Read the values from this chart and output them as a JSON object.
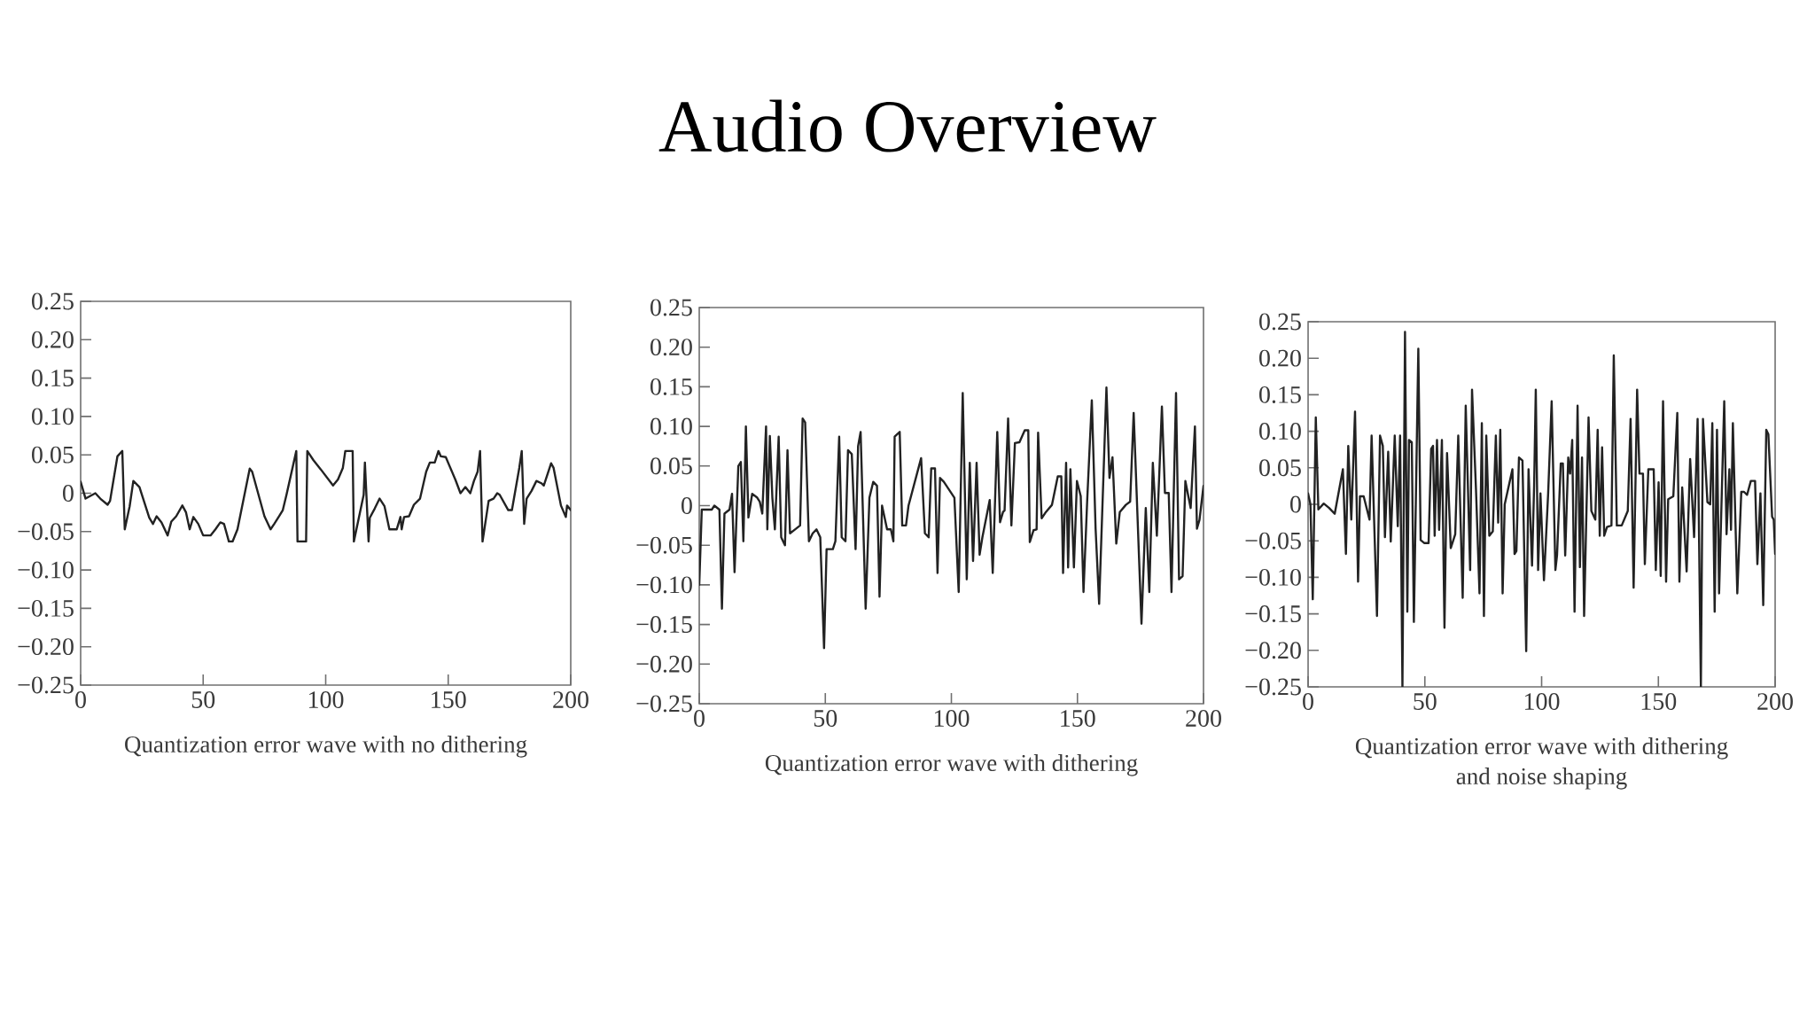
{
  "chart_data": [
    {
      "type": "line",
      "xlabel": "Quantization error wave with no dithering",
      "color": "#222222",
      "xlim": [
        0,
        200
      ],
      "ylim": [
        -0.25,
        0.25
      ],
      "xticks": [
        0,
        50,
        100,
        150,
        200
      ],
      "yticks": [
        {
          "value": -0.25,
          "label": "−0.25"
        },
        {
          "value": -0.2,
          "label": "−0.20"
        },
        {
          "value": -0.15,
          "label": "−0.15"
        },
        {
          "value": -0.1,
          "label": "−0.10"
        },
        {
          "value": -0.05,
          "label": "−0.05"
        },
        0,
        0.05,
        {
          "value": 0.1,
          "label": "0.10"
        },
        0.15,
        {
          "value": 0.2,
          "label": "0.20"
        },
        0.25
      ],
      "x": [
        0,
        2,
        6,
        8,
        11,
        12,
        15,
        17,
        18,
        20,
        21.5,
        24,
        26,
        28,
        29.5,
        31,
        33,
        35.5,
        37,
        39,
        41.5,
        43,
        44.5,
        46,
        48,
        50,
        53,
        55,
        57,
        58.5,
        60.5,
        62,
        64,
        69,
        70,
        75,
        77.5,
        79,
        81,
        82.5,
        84,
        88,
        88.5,
        92,
        92.5,
        95,
        98,
        103,
        105,
        107,
        108,
        111,
        111.5,
        115.5,
        116,
        117.5,
        118,
        120,
        122,
        124,
        126,
        129,
        130.5,
        131,
        132,
        134,
        136,
        138.5,
        141,
        142.5,
        144.5,
        146,
        147,
        149,
        153,
        155,
        157,
        159,
        160.5,
        162,
        163,
        164,
        166.5,
        168.5,
        170,
        171,
        174.5,
        176,
        179,
        180,
        181,
        182,
        184,
        186,
        188,
        189,
        192,
        193,
        196,
        198,
        198.5,
        200
      ],
      "values": [
        0.015,
        -0.007,
        0,
        -0.007,
        -0.015,
        -0.01,
        0.048,
        0.055,
        -0.047,
        -0.017,
        0.016,
        0.008,
        -0.012,
        -0.032,
        -0.04,
        -0.03,
        -0.038,
        -0.055,
        -0.037,
        -0.03,
        -0.016,
        -0.025,
        -0.047,
        -0.031,
        -0.04,
        -0.055,
        -0.055,
        -0.047,
        -0.038,
        -0.04,
        -0.063,
        -0.063,
        -0.047,
        0.032,
        0.028,
        -0.03,
        -0.047,
        -0.04,
        -0.03,
        -0.022,
        -0.002,
        0.055,
        -0.063,
        -0.063,
        0.055,
        0.043,
        0.031,
        0.01,
        0.018,
        0.033,
        0.055,
        0.055,
        -0.063,
        -0.002,
        0.04,
        -0.063,
        -0.032,
        -0.02,
        -0.007,
        -0.017,
        -0.047,
        -0.047,
        -0.031,
        -0.047,
        -0.031,
        -0.03,
        -0.015,
        -0.007,
        0.028,
        0.04,
        0.04,
        0.055,
        0.048,
        0.047,
        0.017,
        0,
        0.008,
        0,
        0.016,
        0.028,
        0.055,
        -0.063,
        -0.01,
        -0.007,
        0,
        -0.002,
        -0.022,
        -0.022,
        0.033,
        0.055,
        -0.04,
        -0.007,
        0.003,
        0.016,
        0.013,
        0.01,
        0.039,
        0.033,
        -0.016,
        -0.031,
        -0.016,
        -0.022
      ]
    },
    {
      "type": "line",
      "title": "Audio Overview",
      "xlabel": "Quantization error wave with dithering",
      "color": "#222222",
      "xlim": [
        0,
        200
      ],
      "ylim": [
        -0.25,
        0.25
      ],
      "xticks": [
        0,
        50,
        100,
        150,
        200
      ],
      "yticks": [
        {
          "value": -0.25,
          "label": "−0.25"
        },
        {
          "value": -0.2,
          "label": "−0.20"
        },
        {
          "value": -0.15,
          "label": "−0.15"
        },
        {
          "value": -0.1,
          "label": "−0.10"
        },
        {
          "value": -0.05,
          "label": "−0.05"
        },
        0,
        0.05,
        {
          "value": 0.1,
          "label": "0.10"
        },
        0.15,
        {
          "value": 0.2,
          "label": "0.20"
        },
        0.25
      ],
      "x": [
        0,
        1,
        5,
        6,
        8,
        9,
        10,
        12,
        13,
        14,
        15.5,
        16.5,
        17.5,
        18.5,
        19.5,
        21,
        23,
        24,
        25,
        26.5,
        27,
        28,
        29,
        30,
        31.5,
        32.5,
        34,
        35,
        36,
        38,
        40,
        41,
        42,
        43.5,
        45,
        46.5,
        48,
        49.5,
        50.5,
        53,
        54,
        55.5,
        56.5,
        58,
        59,
        60.5,
        62,
        63,
        64,
        66,
        67.5,
        69,
        70.5,
        71.5,
        72.5,
        74.5,
        76,
        77,
        77.5,
        79.5,
        80.5,
        82,
        83,
        88,
        89.5,
        91,
        92,
        93.5,
        94.5,
        95.5,
        97,
        101.2,
        102.9,
        104.5,
        106.1,
        107.3,
        108.6,
        110,
        111.2,
        112.3,
        115.2,
        116.4,
        118.2,
        119.3,
        120.5,
        121.1,
        122.5,
        123.8,
        125.2,
        127,
        129.1,
        130.5,
        131.1,
        132.6,
        133.8,
        134.4,
        135.8,
        137.5,
        139.9,
        142.2,
        143.6,
        144.3,
        145.5,
        146.3,
        147.2,
        148.6,
        149.8,
        151.3,
        152.4,
        153.9,
        155.7,
        157.2,
        158.6,
        161.5,
        162.7,
        163.9,
        165.4,
        166.8,
        169.2,
        170.9,
        172.3,
        175.4,
        177.1,
        178.5,
        179.9,
        181.5,
        183.5,
        184.7,
        186.2,
        187.3,
        189.1,
        190.3,
        191.7,
        192.8,
        194.9,
        196.6,
        197.4,
        198.4,
        200
      ],
      "values": [
        -0.1,
        -0.005,
        -0.005,
        0,
        -0.005,
        -0.13,
        -0.01,
        -0.005,
        0.015,
        -0.084,
        0.05,
        0.055,
        -0.045,
        0.1,
        -0.015,
        0.015,
        0.01,
        0.005,
        -0.01,
        0.1,
        -0.03,
        0.088,
        0.01,
        -0.03,
        0.087,
        -0.04,
        -0.05,
        0.07,
        -0.035,
        -0.03,
        -0.025,
        0.11,
        0.105,
        -0.045,
        -0.035,
        -0.03,
        -0.04,
        -0.18,
        -0.055,
        -0.055,
        -0.045,
        0.087,
        -0.04,
        -0.045,
        0.07,
        0.065,
        -0.055,
        0.075,
        0.093,
        -0.13,
        0.01,
        0.03,
        0.025,
        -0.115,
        0,
        -0.03,
        -0.03,
        -0.045,
        0.087,
        0.093,
        -0.025,
        -0.025,
        0,
        0.06,
        -0.035,
        -0.04,
        0.047,
        0.047,
        -0.085,
        0.035,
        0.03,
        0.01,
        -0.109,
        0.142,
        -0.093,
        0.054,
        -0.07,
        0.054,
        -0.062,
        -0.04,
        0.007,
        -0.085,
        0.093,
        -0.021,
        -0.008,
        -0.006,
        0.11,
        -0.025,
        0.079,
        0.08,
        0.095,
        0.095,
        -0.046,
        -0.031,
        -0.03,
        0.092,
        -0.016,
        -0.008,
        0.001,
        0.037,
        0.037,
        -0.085,
        0.054,
        -0.078,
        0.046,
        -0.078,
        0.031,
        0.012,
        -0.109,
        0.009,
        0.133,
        -0.029,
        -0.124,
        0.149,
        0.035,
        0.061,
        -0.048,
        -0.008,
        0.001,
        0.005,
        0.117,
        -0.149,
        -0.003,
        -0.109,
        0.054,
        -0.038,
        0.125,
        0.016,
        0.016,
        -0.109,
        0.142,
        -0.093,
        -0.089,
        0.031,
        -0.003,
        0.1,
        -0.029,
        -0.018,
        0.025
      ]
    },
    {
      "type": "line",
      "xlabel": "Quantization error wave with dithering and noise shaping",
      "color": "#222222",
      "xlim": [
        0,
        200
      ],
      "ylim": [
        -0.25,
        0.25
      ],
      "xticks": [
        0,
        50,
        100,
        150,
        200
      ],
      "yticks": [
        {
          "value": -0.25,
          "label": "−0.25"
        },
        {
          "value": -0.2,
          "label": "−0.20"
        },
        {
          "value": -0.15,
          "label": "−0.15"
        },
        {
          "value": -0.1,
          "label": "−0.10"
        },
        {
          "value": -0.05,
          "label": "−0.05"
        },
        0,
        0.05,
        {
          "value": 0.1,
          "label": "0.10"
        },
        0.15,
        {
          "value": 0.2,
          "label": "0.20"
        },
        0.25
      ],
      "x": [
        0,
        1,
        2,
        3.3,
        4.4,
        6.7,
        9,
        11.4,
        14.9,
        16.2,
        17.2,
        18.5,
        20.1,
        21.4,
        22.2,
        23.8,
        26.3,
        27.2,
        29.5,
        30.8,
        32,
        32.9,
        34.3,
        35.4,
        37.1,
        38.4,
        39.4,
        40.4,
        41.5,
        42.5,
        43.2,
        44.4,
        45.3,
        47.2,
        48.2,
        49.7,
        51.6,
        52.7,
        53.5,
        54.2,
        55.2,
        56.1,
        57.3,
        58.4,
        59.5,
        61.1,
        63,
        64.3,
        66.2,
        67.5,
        69.4,
        70.2,
        71.9,
        73.4,
        74.4,
        75.3,
        76.3,
        77.6,
        79.1,
        80.4,
        81.4,
        82.3,
        83.3,
        84.2,
        87.5,
        88.4,
        89.2,
        90.3,
        91.8,
        93.4,
        94.4,
        95.9,
        96.8,
        97.5,
        98.5,
        99.5,
        101,
        102.8,
        104.3,
        105.9,
        106.6,
        108.2,
        109.1,
        110.1,
        111.4,
        112.2,
        113.1,
        114.1,
        115.4,
        116.4,
        117.3,
        118.2,
        120.1,
        121.3,
        123,
        124,
        124.9,
        125.9,
        126.8,
        128,
        129.9,
        130.9,
        132.2,
        134.3,
        136.9,
        138.1,
        139.4,
        140.9,
        141.9,
        143.4,
        144.2,
        145.7,
        148,
        148.9,
        150.1,
        151,
        152,
        153.3,
        154.2,
        156.4,
        158.1,
        159,
        160.2,
        162.1,
        163.6,
        165.3,
        166.8,
        168.2,
        169.1,
        171,
        172.2,
        173.1,
        174.1,
        175.1,
        176,
        178.2,
        179.2,
        180.4,
        181.1,
        181.9,
        183.8,
        185.5,
        186.7,
        188,
        189.6,
        191.4,
        192.4,
        193.7,
        194.9,
        196.2,
        197.1,
        198.7,
        199.4,
        200
      ],
      "values": [
        0.015,
        0,
        -0.13,
        0.119,
        -0.007,
        0.001,
        -0.005,
        -0.013,
        0.048,
        -0.068,
        0.08,
        -0.021,
        0.127,
        -0.106,
        0.011,
        0.011,
        -0.021,
        0.094,
        -0.153,
        0.094,
        0.08,
        -0.045,
        0.072,
        -0.051,
        0.094,
        -0.03,
        0.094,
        -0.25,
        0.236,
        -0.147,
        0.088,
        0.085,
        -0.161,
        0.213,
        -0.049,
        -0.053,
        -0.053,
        0.076,
        0.08,
        -0.043,
        0.088,
        -0.035,
        0.088,
        -0.169,
        0.07,
        -0.06,
        -0.041,
        0.094,
        -0.128,
        0.135,
        -0.09,
        0.157,
        0.02,
        -0.122,
        0.111,
        -0.153,
        0.094,
        -0.043,
        -0.037,
        0.094,
        -0.025,
        0.102,
        -0.122,
        0,
        0.048,
        -0.068,
        -0.064,
        0.064,
        0.06,
        -0.201,
        0.048,
        -0.084,
        0.026,
        0.157,
        -0.09,
        0.015,
        -0.104,
        0.015,
        0.141,
        -0.09,
        -0.07,
        0.056,
        0.056,
        -0.07,
        0.064,
        0.042,
        0.088,
        -0.147,
        0.135,
        -0.086,
        0.064,
        -0.153,
        0.119,
        -0.009,
        -0.021,
        0.102,
        -0.043,
        0.078,
        -0.043,
        -0.031,
        -0.029,
        0.204,
        -0.029,
        -0.029,
        -0.009,
        0.117,
        -0.114,
        0.157,
        0.042,
        0.042,
        -0.082,
        0.048,
        0.048,
        -0.09,
        0.03,
        -0.098,
        0.141,
        -0.106,
        0.007,
        0.011,
        0.125,
        -0.106,
        0.023,
        -0.092,
        0.062,
        -0.045,
        0.117,
        -0.25,
        0.117,
        0.003,
        0,
        0.111,
        -0.147,
        0.102,
        -0.122,
        0.141,
        -0.041,
        0.048,
        -0.035,
        0.111,
        -0.122,
        0.017,
        0.017,
        0.013,
        0.032,
        0.032,
        -0.082,
        0.015,
        -0.138,
        0.102,
        0.096,
        -0.017,
        -0.021,
        -0.068
      ]
    }
  ]
}
